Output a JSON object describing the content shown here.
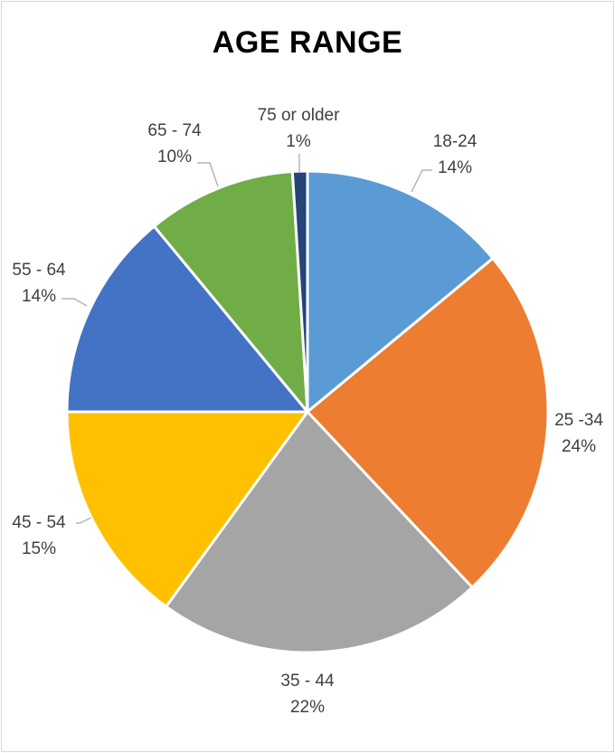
{
  "chart_data": {
    "type": "pie",
    "title": "AGE RANGE",
    "slices": [
      {
        "label": "18-24",
        "percent_label": "14%",
        "value": 14,
        "color": "#5b9bd5"
      },
      {
        "label": "25 -34",
        "percent_label": "24%",
        "value": 24,
        "color": "#ed7d31"
      },
      {
        "label": "35 - 44",
        "percent_label": "22%",
        "value": 22,
        "color": "#a5a5a5"
      },
      {
        "label": "45 - 54",
        "percent_label": "15%",
        "value": 15,
        "color": "#ffc000"
      },
      {
        "label": "55 - 64",
        "percent_label": "14%",
        "value": 14,
        "color": "#4472c4"
      },
      {
        "label": "65 - 74",
        "percent_label": "10%",
        "value": 10,
        "color": "#70ad47"
      },
      {
        "label": "75 or older",
        "percent_label": "1%",
        "value": 1,
        "color": "#264478"
      }
    ],
    "start_angle_deg": 0,
    "direction": "clockwise",
    "legend": "none",
    "data_labels": "category and percent"
  }
}
